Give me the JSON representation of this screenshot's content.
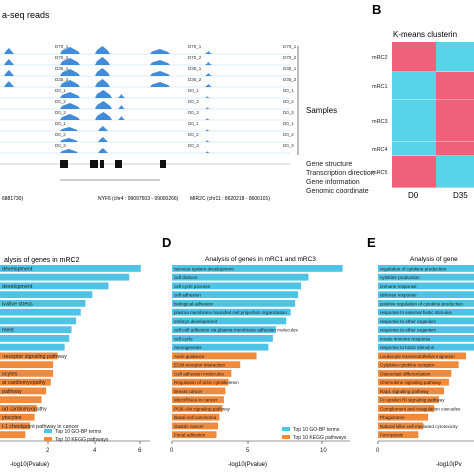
{
  "panel_a": {
    "title": "a-seq reads",
    "tracks": [
      "D70_1",
      "D70_2",
      "D35_1",
      "D35_2",
      "D0_1",
      "D0_2",
      "D0_3",
      "D0_1",
      "D0_2",
      "D0_3"
    ],
    "tracks_right": [
      "D70_1",
      "D70_2",
      "D35_1",
      "D35_2",
      "D0_1",
      "D0_2",
      "D0_3",
      "D0_1",
      "D0_2",
      "D0_3"
    ],
    "samples_label": "Samples",
    "legend": [
      "Gene structure",
      "Transcription direction",
      "Gene information",
      "Genomic coordinate"
    ],
    "gene_left": "6881730)",
    "gene_mid": "NYF6 (chr4 : 99097503 - 99000266)",
    "gene_right": "MIR2C (chr11 : 8620218 - 8606101)"
  },
  "panel_b": {
    "letter": "B",
    "title": "K-means clusterin",
    "rows": [
      "mRC2",
      "mRC1",
      "mRC3",
      "mRC4",
      "mRC5"
    ],
    "cols": [
      "D0",
      "D35"
    ]
  },
  "panel_c": {
    "title": "alysis of genes in mRC2",
    "xlabel": "-log10(Pvalue)",
    "ticks": [
      "2",
      "4",
      "6"
    ],
    "legend": [
      "Top 10 GO-BP terms",
      "Top 10 KEGG pathways"
    ],
    "labels": [
      "development",
      "",
      "development",
      "",
      "ivative stress",
      "",
      "",
      "ment",
      "",
      "",
      "-receptor signaling pathway",
      "",
      "ocytes",
      "ar cardiomyopathy",
      "pathway",
      "",
      "ad cardiomyopathy",
      "ytocytes",
      "l-1 checkpoint pathway in cancer",
      ""
    ]
  },
  "panel_d": {
    "letter": "D",
    "title": "Analysis of genes in mRC1 and mRC3",
    "xlabel": "-log10(Pvalue)",
    "ticks": [
      "0",
      "5",
      "10"
    ],
    "legend": [
      "Top 10 GO-BP terms",
      "Top 10 KEGG pathways"
    ],
    "labels": [
      "nervous system development",
      "cell division",
      "cell cycle process",
      "cell adhesion",
      "biological adhesion",
      "plasma membrane bounded cell projection organization",
      "embryo development",
      "cell-cell adhesion via plasma-membrane adhesion molecules",
      "cell cycle",
      "neurogenesis",
      "Axon guidance",
      "ECM-receptor interaction",
      "Cell adhesion molecules",
      "Regulation of actin cytoskeleton",
      "Breast cancer",
      "MicroRNAs in cancer",
      "PI3K-Akt signaling pathway",
      "Basal cell carcinoma",
      "Gastric cancer",
      "Focal adhesion"
    ]
  },
  "panel_e": {
    "letter": "E",
    "title": "Analysis of gene",
    "xlabel": "-log10(Pv",
    "ticks": [
      "0"
    ],
    "labels": [
      "regulation of cytokine production",
      "cytokine production",
      "immune response",
      "defense response",
      "positive regulation of cytokine production",
      "response to external biotic stimulus",
      "response to other organism",
      "response to other organism",
      "innate immune response",
      "response to biotic stimulus",
      "Leukocyte transendothelial migration",
      "Cytokine-cytokine receptor",
      "Osteoclast differentiation",
      "Chemokine signaling pathway",
      "Rap1 signaling pathway",
      "Fc epsilon RI signaling pathway",
      "Complement and coagulation cascades",
      "Phagosome",
      "Natural killer cell mediated cytotoxicity",
      "Ferroptosis"
    ]
  },
  "chart_data": [
    {
      "type": "heatmap",
      "rows": [
        "mRC2",
        "mRC1",
        "mRC3",
        "mRC4",
        "mRC5"
      ],
      "cols": [
        "D0",
        "D35"
      ]
    },
    {
      "type": "bar",
      "title": "alysis of genes in mRC2",
      "xlabel": "-log10(Pvalue)",
      "values": [
        6.1,
        5.6,
        4.7,
        4.0,
        3.7,
        3.5,
        3.3,
        3.1,
        3.0,
        2.8,
        2.5,
        2.3,
        2.3,
        2.2,
        2.0,
        1.8,
        1.6,
        1.5,
        1.3,
        1.1
      ],
      "series": [
        {
          "name": "Top 10 GO-BP terms",
          "count": 10
        },
        {
          "name": "Top 10 KEGG pathways",
          "count": 10
        }
      ]
    },
    {
      "type": "bar",
      "title": "Analysis of genes in mRC1 and mRC3",
      "xlabel": "-log10(Pvalue)",
      "xlim": [
        0,
        12
      ],
      "categories": [
        "nervous system development",
        "cell division",
        "cell cycle process",
        "cell adhesion",
        "biological adhesion",
        "plasma membrane bounded cell projection organization",
        "embryo development",
        "cell-cell adhesion via plasma-membrane adhesion molecules",
        "cell cycle",
        "neurogenesis",
        "Axon guidance",
        "ECM-receptor interaction",
        "Cell adhesion molecules",
        "Regulation of actin cytoskeleton",
        "Breast cancer",
        "MicroRNAs in cancer",
        "PI3K-Akt signaling pathway",
        "Basal cell carcinoma",
        "Gastric cancer",
        "Focal adhesion"
      ],
      "values": [
        11.5,
        9.2,
        8.7,
        8.5,
        8.3,
        8.0,
        7.7,
        7.0,
        6.8,
        6.5,
        5.7,
        4.6,
        4.0,
        3.8,
        3.6,
        3.5,
        3.4,
        3.2,
        3.1,
        3.0
      ],
      "series": [
        {
          "name": "Top 10 GO-BP terms",
          "count": 10
        },
        {
          "name": "Top 10 KEGG pathways",
          "count": 10
        }
      ]
    },
    {
      "type": "bar",
      "title": "Analysis of gene",
      "xlabel": "-log10(Pv",
      "values": [
        9,
        9,
        9,
        9,
        9,
        9,
        9,
        9,
        9,
        9,
        7.2,
        6.6,
        6.0,
        5.8,
        5.4,
        5.0,
        4.6,
        4.1,
        3.7,
        3.3
      ]
    }
  ],
  "colors": {
    "go": "#4fc3e6",
    "kegg": "#f28a3c",
    "coverage": "#2b7fd6",
    "heat_red": "#f1607a",
    "heat_cyan": "#58d4e8"
  }
}
